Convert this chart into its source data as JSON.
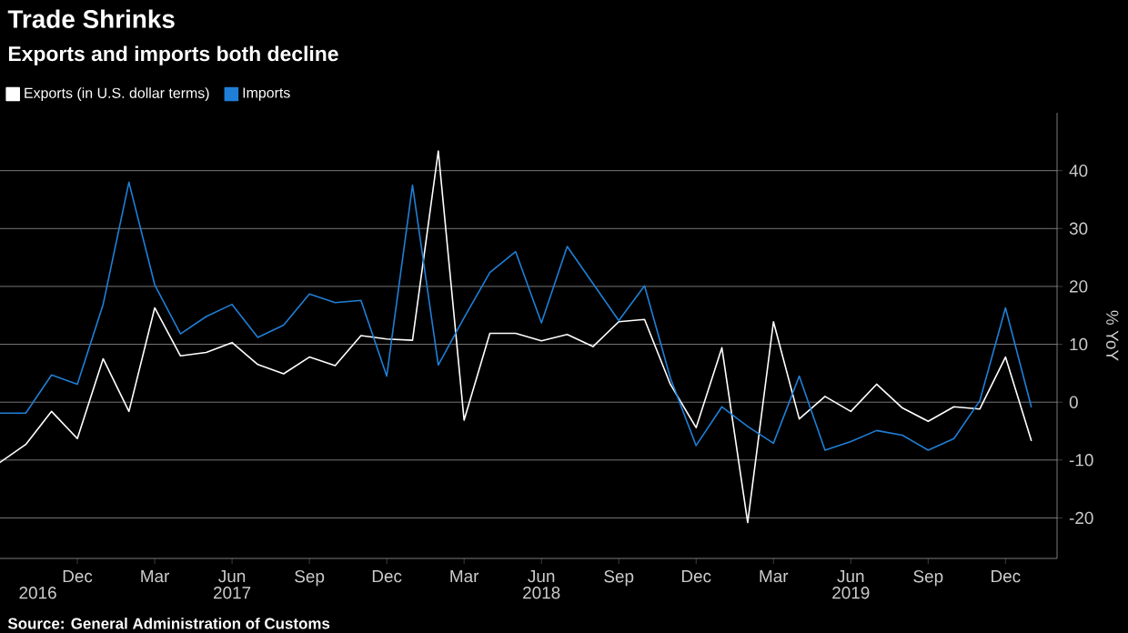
{
  "chart_data": {
    "type": "line",
    "title": "Trade Shrinks",
    "subtitle": "Exports and imports both decline",
    "ylabel": "% YoY",
    "x": [
      "2016-09",
      "2016-10",
      "2016-11",
      "2016-12",
      "2017-01",
      "2017-02",
      "2017-03",
      "2017-04",
      "2017-05",
      "2017-06",
      "2017-07",
      "2017-08",
      "2017-09",
      "2017-10",
      "2017-11",
      "2017-12",
      "2018-01",
      "2018-02",
      "2018-03",
      "2018-04",
      "2018-05",
      "2018-06",
      "2018-07",
      "2018-08",
      "2018-09",
      "2018-10",
      "2018-11",
      "2018-12",
      "2019-01",
      "2019-02",
      "2019-03",
      "2019-04",
      "2019-05",
      "2019-06",
      "2019-07",
      "2019-08",
      "2019-09",
      "2019-10",
      "2019-11",
      "2019-12",
      "2020-01"
    ],
    "series": [
      {
        "name": "Exports (in U.S. dollar terms)",
        "color": "#ffffff",
        "values": [
          -10.4,
          -7.3,
          -1.6,
          -6.3,
          7.5,
          -1.6,
          16.3,
          8.0,
          8.6,
          10.3,
          6.5,
          4.9,
          7.8,
          6.3,
          11.5,
          10.9,
          10.7,
          43.4,
          -3.1,
          11.9,
          11.9,
          10.6,
          11.7,
          9.6,
          13.9,
          14.3,
          3.1,
          -4.4,
          9.4,
          -20.8,
          13.9,
          -2.9,
          1.0,
          -1.6,
          3.1,
          -1.0,
          -3.3,
          -0.8,
          -1.2,
          7.8,
          -6.6
        ]
      },
      {
        "name": "Imports",
        "color": "#1f7fd6",
        "values": [
          -1.9,
          -1.9,
          4.7,
          3.1,
          16.9,
          38.0,
          20.3,
          11.8,
          14.8,
          16.9,
          11.2,
          13.3,
          18.7,
          17.2,
          17.6,
          4.5,
          37.5,
          6.4,
          14.6,
          22.4,
          26.0,
          13.7,
          26.9,
          20.5,
          14.1,
          20.1,
          4.2,
          -7.5,
          -0.8,
          -4.2,
          -7.1,
          4.5,
          -8.3,
          -6.8,
          -4.9,
          -5.7,
          -8.3,
          -6.3,
          0.2,
          16.3,
          -0.8
        ]
      }
    ],
    "xlim": [
      "2016-09",
      "2020-02"
    ],
    "xticks": [
      {
        "value": "2016-12",
        "label": "Dec"
      },
      {
        "value": "2017-03",
        "label": "Mar"
      },
      {
        "value": "2017-06",
        "label": "Jun"
      },
      {
        "value": "2017-09",
        "label": "Sep"
      },
      {
        "value": "2017-12",
        "label": "Dec"
      },
      {
        "value": "2018-03",
        "label": "Mar"
      },
      {
        "value": "2018-06",
        "label": "Jun"
      },
      {
        "value": "2018-09",
        "label": "Sep"
      },
      {
        "value": "2018-12",
        "label": "Dec"
      },
      {
        "value": "2019-03",
        "label": "Mar"
      },
      {
        "value": "2019-06",
        "label": "Jun"
      },
      {
        "value": "2019-09",
        "label": "Sep"
      },
      {
        "value": "2019-12",
        "label": "Dec"
      }
    ],
    "x2lim": [
      "2016-09",
      "2020-02"
    ],
    "x2ticks": [
      {
        "value": "2016-10-15",
        "label": "2016"
      },
      {
        "value": "2017-06",
        "label": "2017"
      },
      {
        "value": "2018-06",
        "label": "2018"
      },
      {
        "value": "2019-06",
        "label": "2019"
      }
    ],
    "ylim": [
      -27,
      50
    ],
    "yticks": [
      -20,
      -10,
      0,
      10,
      20,
      30,
      40
    ],
    "grid": "y",
    "legend": "top left",
    "marker": "none",
    "line_style": "solid",
    "annotations": [
      "Source: General Administration of Customs"
    ]
  }
}
